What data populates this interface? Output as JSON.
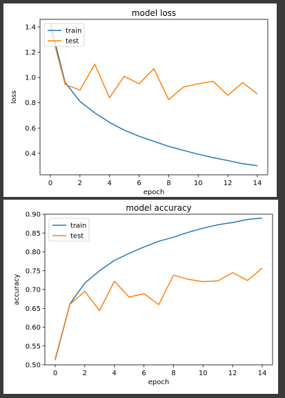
{
  "colors": {
    "train": "#1f77b4",
    "test": "#ff7f0e",
    "background": "#3a3a3a"
  },
  "chart_data": [
    {
      "type": "line",
      "title": "model loss",
      "xlabel": "epoch",
      "ylabel": "loss",
      "xlim": [
        -0.7,
        14.7
      ],
      "ylim": [
        0.23,
        1.46
      ],
      "xticks": [
        0,
        2,
        4,
        6,
        8,
        10,
        12,
        14
      ],
      "yticks": [
        0.4,
        0.6,
        0.8,
        1.0,
        1.2,
        1.4
      ],
      "ytick_labels": [
        "0.4",
        "0.6",
        "0.8",
        "1.0",
        "1.2",
        "1.4"
      ],
      "legend_position": "top-left",
      "grid": false,
      "x": [
        0,
        1,
        2,
        3,
        4,
        5,
        6,
        7,
        8,
        9,
        10,
        11,
        12,
        13,
        14
      ],
      "series": [
        {
          "name": "train",
          "values": [
            1.43,
            0.96,
            0.81,
            0.72,
            0.645,
            0.583,
            0.535,
            0.495,
            0.455,
            0.423,
            0.393,
            0.366,
            0.343,
            0.318,
            0.302
          ]
        },
        {
          "name": "test",
          "values": [
            1.39,
            0.945,
            0.9,
            1.105,
            0.84,
            1.01,
            0.95,
            1.07,
            0.825,
            0.925,
            0.95,
            0.97,
            0.86,
            0.96,
            0.87
          ]
        }
      ]
    },
    {
      "type": "line",
      "title": "model accuracy",
      "xlabel": "epoch",
      "ylabel": "accuracy",
      "xlim": [
        -0.7,
        14.7
      ],
      "ylim": [
        0.5,
        0.9
      ],
      "xticks": [
        0,
        2,
        4,
        6,
        8,
        10,
        12,
        14
      ],
      "yticks": [
        0.5,
        0.55,
        0.6,
        0.65,
        0.7,
        0.75,
        0.8,
        0.85,
        0.9
      ],
      "ytick_labels": [
        "0.50",
        "0.55",
        "0.60",
        "0.65",
        "0.70",
        "0.75",
        "0.80",
        "0.85",
        "0.90"
      ],
      "legend_position": "top-left",
      "grid": false,
      "x": [
        0,
        1,
        2,
        3,
        4,
        5,
        6,
        7,
        8,
        9,
        10,
        11,
        12,
        13,
        14
      ],
      "series": [
        {
          "name": "train",
          "values": [
            0.515,
            0.662,
            0.717,
            0.75,
            0.777,
            0.796,
            0.813,
            0.828,
            0.839,
            0.852,
            0.863,
            0.872,
            0.878,
            0.886,
            0.89
          ]
        },
        {
          "name": "test",
          "values": [
            0.512,
            0.661,
            0.695,
            0.644,
            0.722,
            0.68,
            0.689,
            0.66,
            0.738,
            0.727,
            0.721,
            0.723,
            0.745,
            0.724,
            0.757
          ]
        }
      ]
    }
  ]
}
